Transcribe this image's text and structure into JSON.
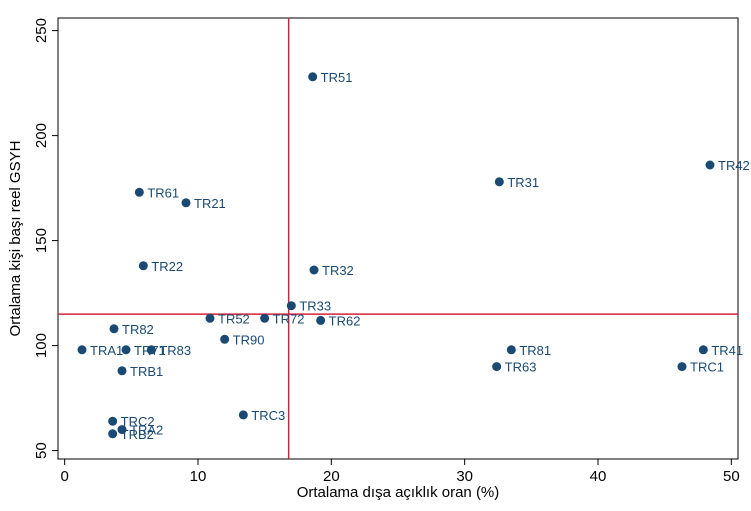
{
  "chart_data": {
    "type": "scatter",
    "title": "",
    "xlabel": "Ortalama dışa açıklık oran (%)",
    "ylabel": "Ortalama kişi başı reel GSYH",
    "xlim": [
      -0.5,
      50.5
    ],
    "ylim": [
      46,
      256
    ],
    "xticks": [
      0,
      10,
      20,
      30,
      40,
      50
    ],
    "yticks": [
      50,
      100,
      150,
      200,
      250
    ],
    "grid": false,
    "legend": "none",
    "point_color": "#1a4a73",
    "reference_line_color": "#d6203a",
    "reference_lines": {
      "x": 16.8,
      "y": 115
    },
    "points": [
      {
        "label": "TR51",
        "x": 18.6,
        "y": 228
      },
      {
        "label": "TR42",
        "x": 48.4,
        "y": 186
      },
      {
        "label": "TR31",
        "x": 32.6,
        "y": 178
      },
      {
        "label": "TR61",
        "x": 5.6,
        "y": 173
      },
      {
        "label": "TR21",
        "x": 9.1,
        "y": 168
      },
      {
        "label": "TR22",
        "x": 5.9,
        "y": 138
      },
      {
        "label": "TR32",
        "x": 18.7,
        "y": 136
      },
      {
        "label": "TR33",
        "x": 17.0,
        "y": 119
      },
      {
        "label": "TR52",
        "x": 10.9,
        "y": 113
      },
      {
        "label": "TR72",
        "x": 15.0,
        "y": 113
      },
      {
        "label": "TR62",
        "x": 19.2,
        "y": 112
      },
      {
        "label": "TR82",
        "x": 3.7,
        "y": 108
      },
      {
        "label": "TR90",
        "x": 12.0,
        "y": 103
      },
      {
        "label": "TRA1",
        "x": 1.3,
        "y": 98
      },
      {
        "label": "TR71",
        "x": 4.6,
        "y": 98
      },
      {
        "label": "TR83",
        "x": 6.5,
        "y": 98
      },
      {
        "label": "TR81",
        "x": 33.5,
        "y": 98
      },
      {
        "label": "TR41",
        "x": 47.9,
        "y": 98
      },
      {
        "label": "TR63",
        "x": 32.4,
        "y": 90
      },
      {
        "label": "TRC1",
        "x": 46.3,
        "y": 90
      },
      {
        "label": "TRB1",
        "x": 4.3,
        "y": 88
      },
      {
        "label": "TRC3",
        "x": 13.4,
        "y": 67
      },
      {
        "label": "TRC2",
        "x": 3.6,
        "y": 64
      },
      {
        "label": "TRA2",
        "x": 4.3,
        "y": 60
      },
      {
        "label": "TRB2",
        "x": 3.6,
        "y": 58
      }
    ]
  }
}
